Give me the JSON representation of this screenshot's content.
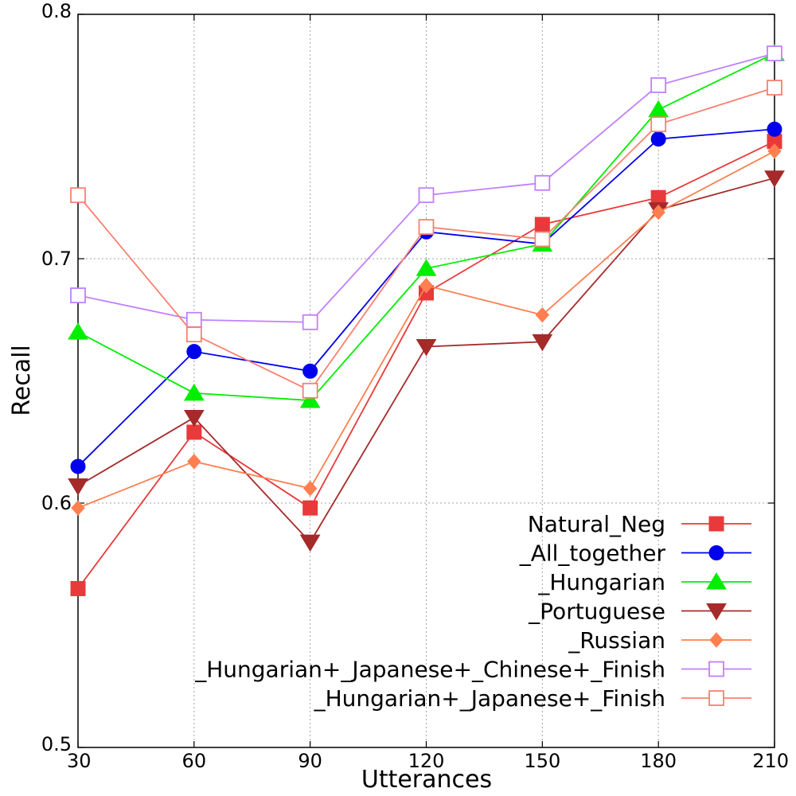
{
  "chart_data": {
    "type": "line",
    "title": "",
    "xlabel": "Utterances",
    "ylabel": "Recall",
    "x": [
      30,
      60,
      90,
      120,
      150,
      180,
      210
    ],
    "x_ticks": [
      "30",
      "60",
      "90",
      "120",
      "150",
      "180",
      "210"
    ],
    "xlim": [
      30,
      210
    ],
    "ylim": [
      0.5,
      0.8
    ],
    "y_ticks": [
      0.5,
      0.6,
      0.7,
      0.8
    ],
    "y_tick_labels": [
      "0.5",
      "0.6",
      "0.7",
      "0.8"
    ],
    "grid": true,
    "legend_position": "lower-right",
    "series": [
      {
        "name": "Natural_Neg",
        "color": "#e8393b",
        "marker": "square-filled",
        "values": [
          0.565,
          0.629,
          0.598,
          0.686,
          0.714,
          0.725,
          0.748
        ]
      },
      {
        "name": "_All_together",
        "color": "#0000ee",
        "marker": "circle-filled",
        "values": [
          0.615,
          0.662,
          0.654,
          0.711,
          0.706,
          0.749,
          0.753
        ]
      },
      {
        "name": "_Hungarian",
        "color": "#00ee00",
        "marker": "triangle-up-filled",
        "values": [
          0.67,
          0.645,
          0.642,
          0.696,
          0.706,
          0.761,
          0.784
        ]
      },
      {
        "name": "_Portuguese",
        "color": "#a52a2a",
        "marker": "triangle-down-filled",
        "values": [
          0.607,
          0.635,
          0.584,
          0.664,
          0.666,
          0.72,
          0.733
        ]
      },
      {
        "name": "_Russian",
        "color": "#ff7f50",
        "marker": "diamond-filled",
        "values": [
          0.598,
          0.617,
          0.606,
          0.689,
          0.677,
          0.719,
          0.744
        ]
      },
      {
        "name": "_Hungarian+_Japanese+_Chinese+_Finish",
        "color": "#c080ff",
        "marker": "square-open",
        "values": [
          0.685,
          0.675,
          0.674,
          0.726,
          0.731,
          0.771,
          0.784
        ]
      },
      {
        "name": "_Hungarian+_Japanese+_Finish",
        "color": "#fa8072",
        "marker": "square-open",
        "values": [
          0.726,
          0.669,
          0.646,
          0.713,
          0.708,
          0.755,
          0.77
        ]
      }
    ]
  }
}
